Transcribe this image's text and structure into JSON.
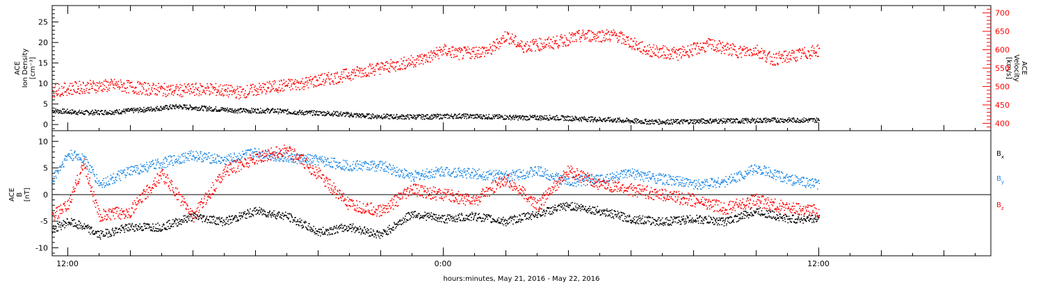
{
  "x_axis": {
    "label": "hours:minutes, May 21, 2016 - May 22, 2016",
    "ticks": [
      "12:00",
      "0:00",
      "12:00"
    ]
  },
  "chart_data": [
    {
      "type": "scatter",
      "panel": "top",
      "left_axis_label": [
        "ACE",
        "Ion Density",
        "[cm⁻³]"
      ],
      "right_axis_label": [
        "ACE",
        "Velocity",
        "[km/s]"
      ],
      "x_range_hours": [
        11.5,
        41.5
      ],
      "y_left_range": [
        -1.5,
        29
      ],
      "y_left_ticks": [
        0,
        5,
        10,
        15,
        20,
        25
      ],
      "y_right_range": [
        380,
        720
      ],
      "y_right_ticks": [
        400,
        450,
        500,
        550,
        600,
        650,
        700
      ],
      "colors": {
        "density": "#000000",
        "velocity": "#ff0000"
      },
      "series": [
        {
          "axis": "left",
          "color": "#000000",
          "x": [
            11.5,
            12.5,
            13.5,
            14.5,
            15.5,
            16.5,
            17.5,
            18.5,
            19.5,
            20.5,
            21.5,
            22.5,
            23.5,
            24.5,
            25.5,
            26.5,
            27.5,
            28.5,
            29.5,
            30.5,
            31.5,
            32.5,
            33.5,
            34.5,
            35.5,
            36.0
          ],
          "y": [
            3.5,
            3.0,
            3.2,
            3.8,
            4.5,
            4.0,
            3.5,
            3.5,
            3.0,
            2.8,
            2.2,
            2.0,
            2.0,
            2.2,
            2.0,
            1.8,
            1.8,
            1.5,
            1.2,
            0.8,
            0.8,
            1.0,
            1.0,
            1.2,
            1.2,
            1.2
          ]
        },
        {
          "axis": "right",
          "color": "#ff0000",
          "x": [
            11.5,
            12.5,
            13.5,
            14.5,
            15.5,
            16.5,
            17.5,
            18.5,
            19.5,
            20.5,
            21.5,
            22.5,
            23.5,
            24.0,
            24.5,
            25.5,
            26.0,
            26.5,
            27.5,
            28.5,
            29.5,
            30.5,
            31.5,
            32.5,
            33.5,
            34.0,
            34.5,
            35.5,
            36.0
          ],
          "y": [
            490,
            500,
            505,
            495,
            490,
            495,
            485,
            500,
            510,
            525,
            545,
            560,
            580,
            600,
            590,
            600,
            640,
            610,
            620,
            640,
            640,
            600,
            590,
            615,
            595,
            600,
            575,
            590,
            600
          ]
        }
      ]
    },
    {
      "type": "scatter",
      "panel": "bottom",
      "y_label": [
        "ACE",
        "B",
        "[nT]"
      ],
      "x_range_hours": [
        11.5,
        41.5
      ],
      "y_range": [
        -11.5,
        12
      ],
      "y_ticks": [
        -10,
        -5,
        0,
        5,
        10
      ],
      "zero_line": true,
      "series": [
        {
          "name": "Bx",
          "color": "#000000",
          "x": [
            11.5,
            12.0,
            12.5,
            13.0,
            14.0,
            15.0,
            16.0,
            17.0,
            18.0,
            19.0,
            20.0,
            21.0,
            22.0,
            23.0,
            24.0,
            25.0,
            26.0,
            27.0,
            28.0,
            29.0,
            30.0,
            31.0,
            32.0,
            33.0,
            34.0,
            35.0,
            36.0
          ],
          "y": [
            -6.5,
            -5.0,
            -6.0,
            -7.5,
            -6.0,
            -6.0,
            -4.0,
            -5.0,
            -3.0,
            -4.0,
            -7.0,
            -6.0,
            -7.5,
            -3.5,
            -4.5,
            -4.0,
            -5.0,
            -3.5,
            -2.0,
            -3.0,
            -4.5,
            -5.0,
            -4.5,
            -5.0,
            -3.0,
            -4.5,
            -4.5
          ]
        },
        {
          "name": "By",
          "color": "#1e88e5",
          "x": [
            11.5,
            12.0,
            12.5,
            13.0,
            14.0,
            15.0,
            16.0,
            17.0,
            18.0,
            19.0,
            20.0,
            21.0,
            22.0,
            23.0,
            24.0,
            25.0,
            26.0,
            27.0,
            28.0,
            29.0,
            30.0,
            31.0,
            32.0,
            33.0,
            34.0,
            35.0,
            36.0
          ],
          "y": [
            3.0,
            7.5,
            7.0,
            2.0,
            4.5,
            6.0,
            7.5,
            6.5,
            8.0,
            7.0,
            6.5,
            5.5,
            5.5,
            3.5,
            4.5,
            4.0,
            3.5,
            4.5,
            2.5,
            3.0,
            4.0,
            3.0,
            2.0,
            2.5,
            5.0,
            3.0,
            2.0
          ]
        },
        {
          "name": "Bz",
          "color": "#ff0000",
          "x": [
            11.5,
            12.0,
            12.5,
            13.0,
            14.0,
            15.0,
            16.0,
            17.0,
            18.0,
            19.0,
            20.0,
            21.0,
            22.0,
            23.0,
            24.0,
            25.0,
            26.0,
            27.0,
            28.0,
            29.0,
            30.0,
            31.0,
            32.0,
            33.0,
            34.0,
            35.0,
            36.0
          ],
          "y": [
            -4.0,
            -2.0,
            6.0,
            -4.0,
            -3.0,
            4.0,
            -4.0,
            4.5,
            7.0,
            8.5,
            4.0,
            -2.0,
            -3.0,
            1.0,
            0.0,
            -1.0,
            3.0,
            -2.0,
            4.5,
            2.0,
            1.0,
            0.0,
            -1.0,
            -2.5,
            -1.0,
            -2.5,
            -3.0
          ]
        }
      ]
    }
  ],
  "legend": [
    {
      "main": "B",
      "sub": "x",
      "color": "#000000"
    },
    {
      "main": "B",
      "sub": "y",
      "color": "#1e88e5"
    },
    {
      "main": "B",
      "sub": "z",
      "color": "#ff0000"
    }
  ]
}
